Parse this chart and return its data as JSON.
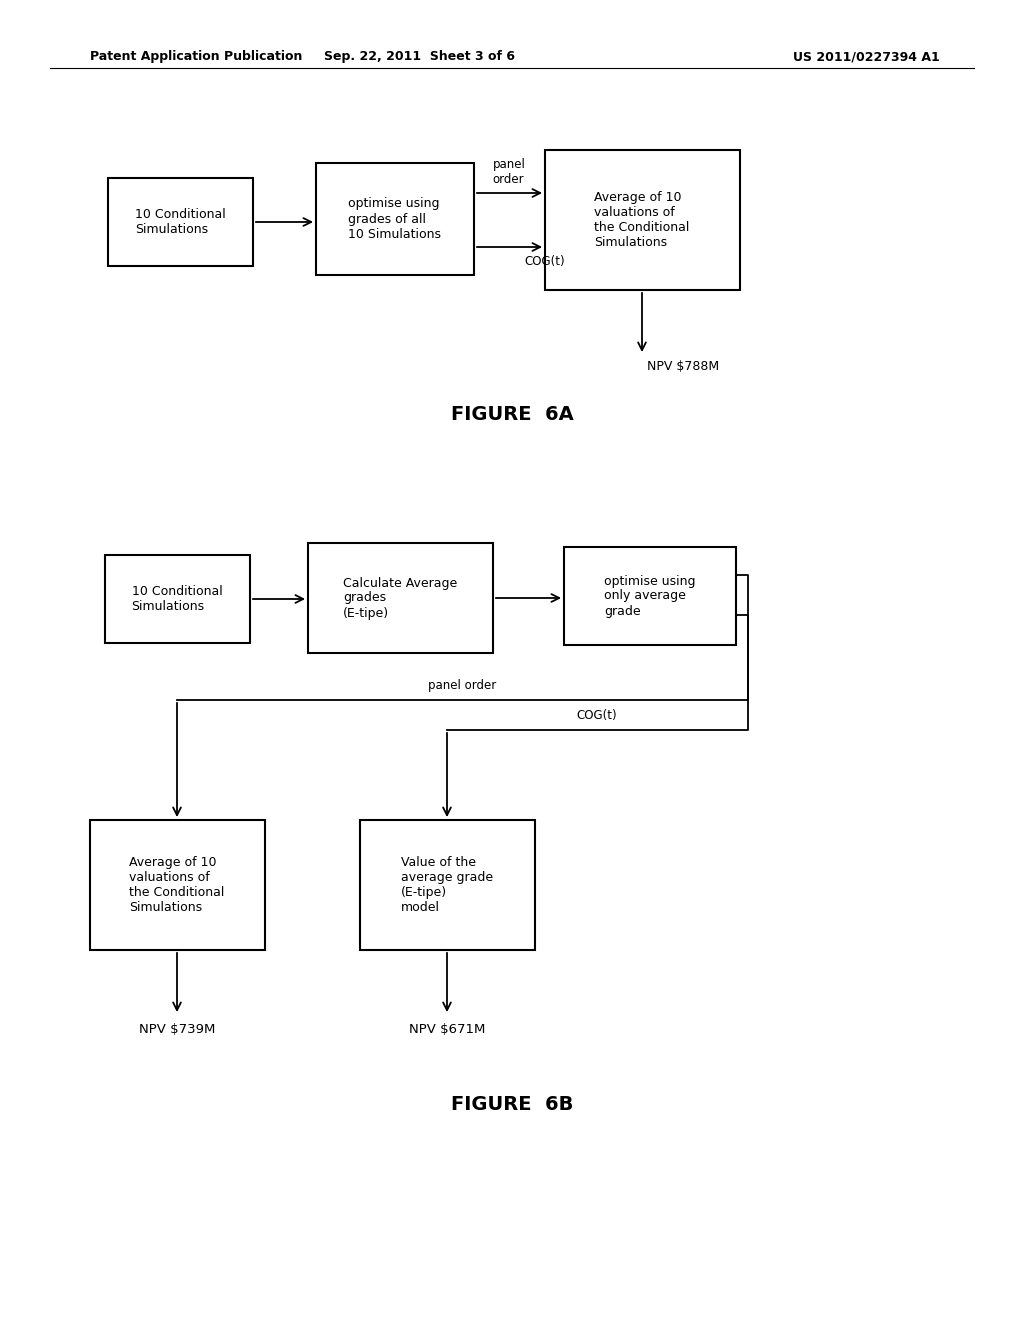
{
  "bg_color": "#ffffff",
  "header_left": "Patent Application Publication",
  "header_mid": "Sep. 22, 2011  Sheet 3 of 6",
  "header_right": "US 2011/0227394 A1",
  "fig6a_label": "FIGURE  6A",
  "fig6b_label": "FIGURE  6B"
}
